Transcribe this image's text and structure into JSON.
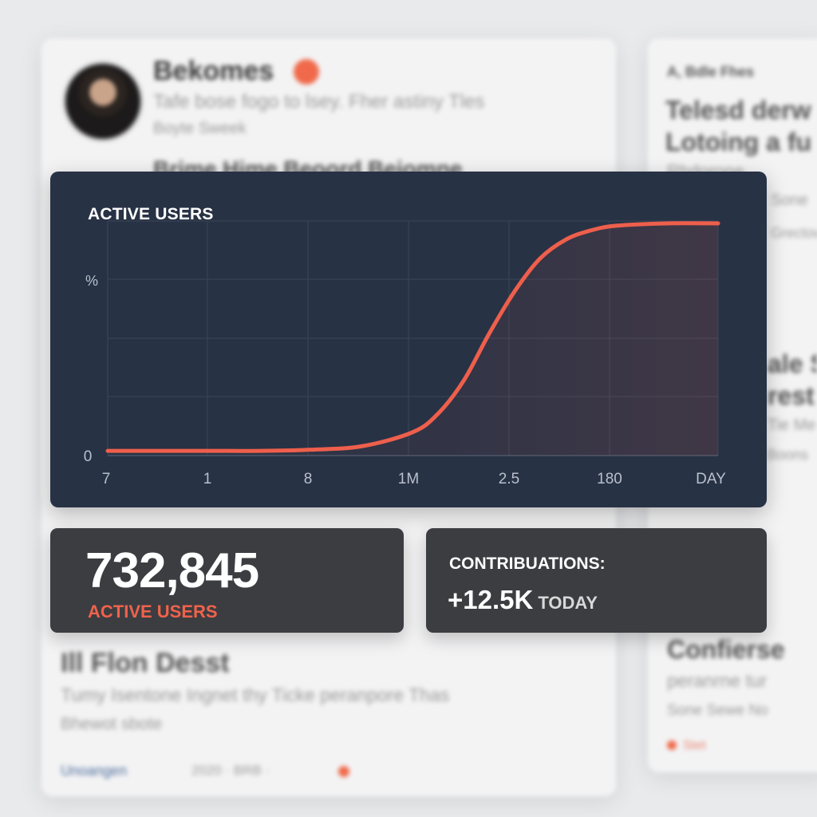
{
  "chart_data": {
    "type": "line",
    "title": "ACTIVE USERS",
    "ylabel": "%",
    "y_tick_labels": [
      "0"
    ],
    "x_tick_labels": [
      "7",
      "1",
      "8",
      "1M",
      "2.5",
      "180",
      "DAY"
    ],
    "ylim": [
      0,
      100
    ],
    "grid": true,
    "series": [
      {
        "x": [
          0,
          0.5,
          1,
          1.5,
          2,
          2.5,
          3,
          3.25,
          3.5,
          3.75,
          4,
          4.25,
          4.5,
          4.75,
          5,
          5.5,
          6
        ],
        "values": [
          2,
          2,
          2,
          2,
          2.5,
          4,
          10,
          18,
          32,
          52,
          70,
          84,
          92,
          96,
          98,
          99,
          99
        ]
      }
    ],
    "colors": {
      "line": "#ee5f4c",
      "background": "#283245",
      "grid": "#3a4558"
    }
  },
  "stats": {
    "active_users_value": "732,845",
    "active_users_label": "ACTIVE USERS",
    "contributions_label": "CONTRIBUATIONS:",
    "contributions_value": "+12.5K",
    "contributions_suffix": "TODAY"
  },
  "colors": {
    "accent": "#f0624b",
    "card_dark": "#3b3d41",
    "chart_bg": "#283245"
  },
  "background": {
    "profile_name": "Bekomes",
    "profile_line1": "Tafe bose fogo to lsey. Fher astiny Tles",
    "profile_line2": "Boyte Sweek",
    "profile_heading": "Brime Hime Beoord Beiomne",
    "right_small": "A, Bdle Fhes",
    "right_heading1": "Telesd derw",
    "right_heading2": "Lotoing a fu",
    "right_line1": "Rhdorone",
    "right_line2": "Sone",
    "right_line3": "Grectow",
    "right_heading3": "ale S",
    "right_heading4": "rest",
    "right_line4": "Tie Me",
    "right_line5": "Boons",
    "bottom_heading": "Ill Flon Desst",
    "bottom_line1": "Tumy Isentone Ingnet thy Ticke peranpore Thas",
    "bottom_line2": "Bhewot sbote",
    "bottom_link": "Unoangen",
    "bottom_meta": "2020 · BRB ·",
    "right_bottom_heading": "Confierse",
    "right_bottom_line1": "peranrne tur",
    "right_bottom_line2": "Sone Sewe No",
    "right_bottom_tag": "Stet"
  }
}
